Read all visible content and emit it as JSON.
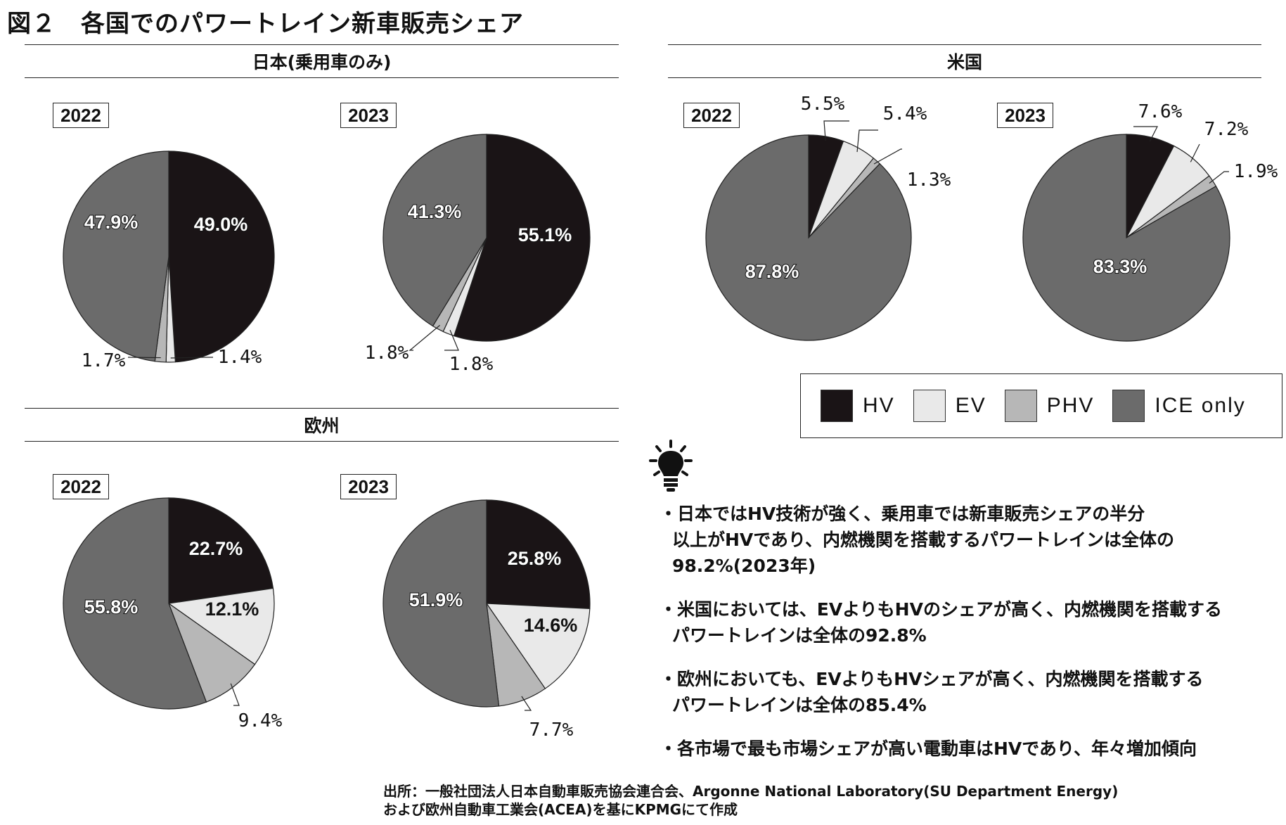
{
  "figure_title": "図２　各国でのパワートレイン新車販売シェア",
  "colors": {
    "HV": "#1a1416",
    "EV": "#e9e9e9",
    "PHV": "#b7b7b7",
    "ICE": "#6b6b6b"
  },
  "legend": [
    {
      "key": "HV",
      "label": "HV"
    },
    {
      "key": "EV",
      "label": "EV"
    },
    {
      "key": "PHV",
      "label": "PHV"
    },
    {
      "key": "ICE",
      "label": "ICE only"
    }
  ],
  "sections": {
    "japan": "日本(乗用車のみ)",
    "us": "米国",
    "europe": "欧州"
  },
  "chart_data": [
    {
      "type": "pie",
      "region": "日本(乗用車のみ)",
      "year": "2022",
      "slices": [
        {
          "key": "HV",
          "value": 49.0,
          "label": "49.0%"
        },
        {
          "key": "EV",
          "value": 1.4,
          "label": "1.4%"
        },
        {
          "key": "PHV",
          "value": 1.7,
          "label": "1.7%"
        },
        {
          "key": "ICE",
          "value": 47.9,
          "label": "47.9%"
        }
      ]
    },
    {
      "type": "pie",
      "region": "日本(乗用車のみ)",
      "year": "2023",
      "slices": [
        {
          "key": "HV",
          "value": 55.1,
          "label": "55.1%"
        },
        {
          "key": "EV",
          "value": 1.8,
          "label": "1.8%"
        },
        {
          "key": "PHV",
          "value": 1.8,
          "label": "1.8%"
        },
        {
          "key": "ICE",
          "value": 41.3,
          "label": "41.3%"
        }
      ]
    },
    {
      "type": "pie",
      "region": "米国",
      "year": "2022",
      "slices": [
        {
          "key": "HV",
          "value": 5.5,
          "label": "5.5%"
        },
        {
          "key": "EV",
          "value": 5.4,
          "label": "5.4%"
        },
        {
          "key": "PHV",
          "value": 1.3,
          "label": "1.3%"
        },
        {
          "key": "ICE",
          "value": 87.8,
          "label": "87.8%"
        }
      ]
    },
    {
      "type": "pie",
      "region": "米国",
      "year": "2023",
      "slices": [
        {
          "key": "HV",
          "value": 7.6,
          "label": "7.6%"
        },
        {
          "key": "EV",
          "value": 7.2,
          "label": "7.2%"
        },
        {
          "key": "PHV",
          "value": 1.9,
          "label": "1.9%"
        },
        {
          "key": "ICE",
          "value": 83.3,
          "label": "83.3%"
        }
      ]
    },
    {
      "type": "pie",
      "region": "欧州",
      "year": "2022",
      "slices": [
        {
          "key": "HV",
          "value": 22.7,
          "label": "22.7%"
        },
        {
          "key": "EV",
          "value": 12.1,
          "label": "12.1%"
        },
        {
          "key": "PHV",
          "value": 9.4,
          "label": "9.4%"
        },
        {
          "key": "ICE",
          "value": 55.8,
          "label": "55.8%"
        }
      ]
    },
    {
      "type": "pie",
      "region": "欧州",
      "year": "2023",
      "slices": [
        {
          "key": "HV",
          "value": 25.8,
          "label": "25.8%"
        },
        {
          "key": "EV",
          "value": 14.6,
          "label": "14.6%"
        },
        {
          "key": "PHV",
          "value": 7.7,
          "label": "7.7%"
        },
        {
          "key": "ICE",
          "value": 51.9,
          "label": "51.9%"
        }
      ]
    }
  ],
  "notes": [
    [
      "・日本ではHV技術が強く、乗用車では新車販売シェアの半分",
      "以上がHVであり、内燃機関を搭載するパワートレインは全体の",
      "98.2%(2023年)"
    ],
    [
      "・米国においては、EVよりもHVのシェアが高く、内燃機関を搭載する",
      "パワートレインは全体の92.8%"
    ],
    [
      "・欧州においても、EVよりもHVシェアが高く、内燃機関を搭載する",
      "パワートレインは全体の85.4%"
    ],
    [
      "・各市場で最も市場シェアが高い電動車はHVであり、年々増加傾向"
    ]
  ],
  "source": [
    "出所：一般社団法人日本自動車販売協会連合会、Argonne National Laboratory(SU Department Energy)",
    "および欧州自動車工業会(ACEA)を基にKPMGにて作成"
  ]
}
